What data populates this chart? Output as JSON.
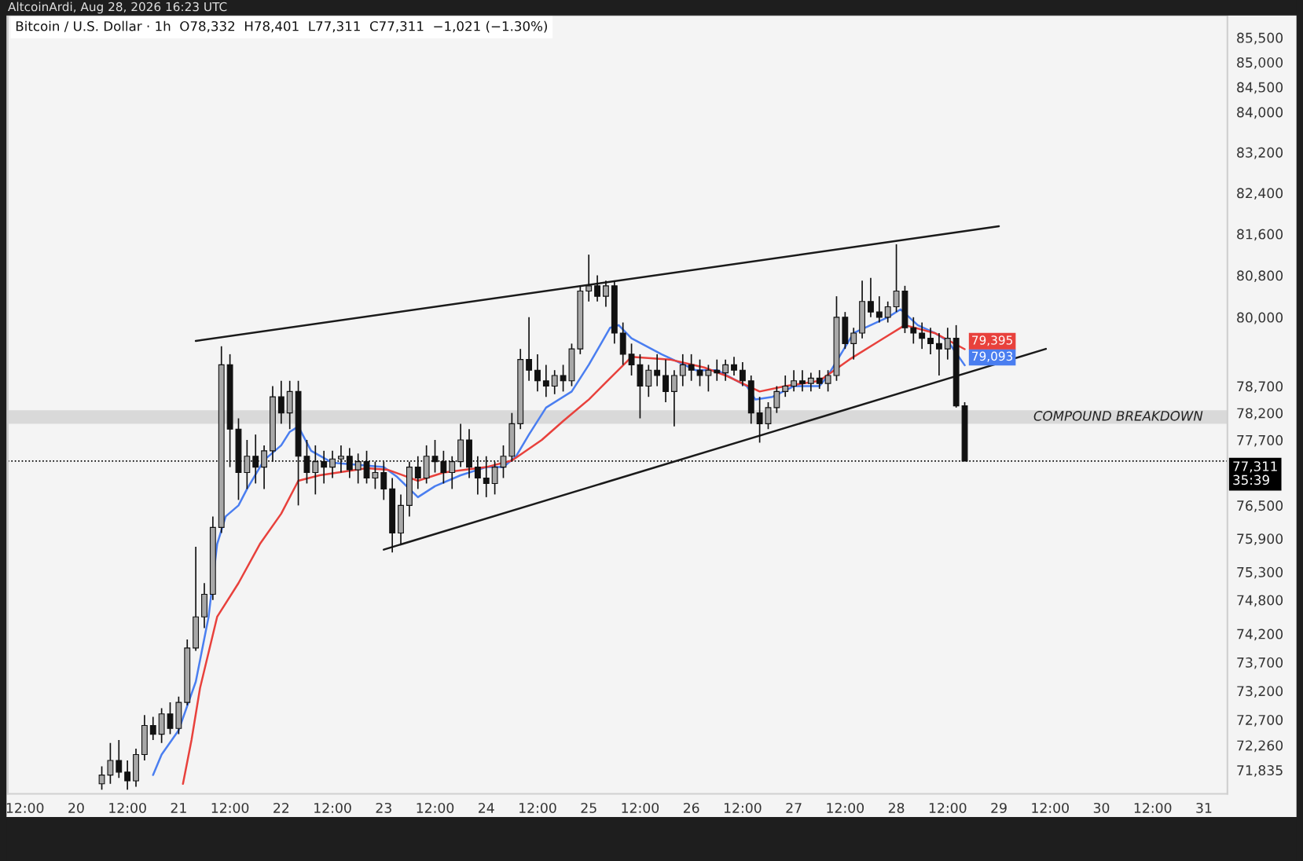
{
  "chart_data": {
    "type": "candlestick",
    "title": "Bitcoin / U.S. Dollar · 1h  O78,332  H78,401  L77,311  C77,311  −1,021 (−1.30%)",
    "subtitle": "AltcoinArdi, Aug 28, 2026 16:23 UTC",
    "log": true,
    "grid": false,
    "legend": false,
    "marker": "none",
    "ylim": [
      71430,
      85950
    ],
    "yticks": [
      {
        "value": 85500,
        "label": "85,500"
      },
      {
        "value": 85000,
        "label": "85,000"
      },
      {
        "value": 84500,
        "label": "84,500"
      },
      {
        "value": 84000,
        "label": "84,000"
      },
      {
        "value": 83200,
        "label": "83,200"
      },
      {
        "value": 82400,
        "label": "82,400"
      },
      {
        "value": 81600,
        "label": "81,600"
      },
      {
        "value": 80800,
        "label": "80,800"
      },
      {
        "value": 80000,
        "label": "80,000"
      },
      {
        "value": 78700,
        "label": "78,700"
      },
      {
        "value": 78200,
        "label": "78,200"
      },
      {
        "value": 77700,
        "label": "77,700"
      },
      {
        "value": 76500,
        "label": "76,500"
      },
      {
        "value": 75900,
        "label": "75,900"
      },
      {
        "value": 75300,
        "label": "75,300"
      },
      {
        "value": 74800,
        "label": "74,800"
      },
      {
        "value": 74200,
        "label": "74,200"
      },
      {
        "value": 73700,
        "label": "73,700"
      },
      {
        "value": 73200,
        "label": "73,200"
      },
      {
        "value": 72700,
        "label": "72,700"
      },
      {
        "value": 72260,
        "label": "72,260"
      },
      {
        "value": 71835,
        "label": "71,835"
      }
    ],
    "xlim": [
      "2026-08-19T08:00",
      "2026-08-31T05:30"
    ],
    "xticks": [
      {
        "value": "2026-08-19T12:00",
        "label": "12:00"
      },
      {
        "value": "2026-08-20T00:00",
        "label": "20"
      },
      {
        "value": "2026-08-20T12:00",
        "label": "12:00"
      },
      {
        "value": "2026-08-21T00:00",
        "label": "21"
      },
      {
        "value": "2026-08-21T12:00",
        "label": "12:00"
      },
      {
        "value": "2026-08-22T00:00",
        "label": "22"
      },
      {
        "value": "2026-08-22T12:00",
        "label": "12:00"
      },
      {
        "value": "2026-08-23T00:00",
        "label": "23"
      },
      {
        "value": "2026-08-23T12:00",
        "label": "12:00"
      },
      {
        "value": "2026-08-24T00:00",
        "label": "24"
      },
      {
        "value": "2026-08-24T12:00",
        "label": "12:00"
      },
      {
        "value": "2026-08-25T00:00",
        "label": "25"
      },
      {
        "value": "2026-08-25T12:00",
        "label": "12:00"
      },
      {
        "value": "2026-08-26T00:00",
        "label": "26"
      },
      {
        "value": "2026-08-26T12:00",
        "label": "12:00"
      },
      {
        "value": "2026-08-27T00:00",
        "label": "27"
      },
      {
        "value": "2026-08-27T12:00",
        "label": "12:00"
      },
      {
        "value": "2026-08-28T00:00",
        "label": "28"
      },
      {
        "value": "2026-08-28T12:00",
        "label": "12:00"
      },
      {
        "value": "2026-08-29T00:00",
        "label": "29"
      },
      {
        "value": "2026-08-29T12:00",
        "label": "12:00"
      },
      {
        "value": "2026-08-30T00:00",
        "label": "30"
      },
      {
        "value": "2026-08-30T12:00",
        "label": "12:00"
      },
      {
        "value": "2026-08-31T00:00",
        "label": "31"
      }
    ],
    "ref_lines": [
      {
        "axis": "y",
        "value": 77311,
        "label": "77,311\n35:39",
        "color": "#000000",
        "line_style": "dotted"
      }
    ],
    "bands": [
      {
        "axis": "y",
        "from": 78000,
        "to": 78250,
        "label": "COMPOUND BREAKDOWN",
        "color": "#d9d9d9"
      }
    ],
    "series": [
      {
        "type": "candlestick",
        "x": [
          "2026-08-20T06:00",
          "2026-08-20T08:00",
          "2026-08-20T10:00",
          "2026-08-20T12:00",
          "2026-08-20T14:00",
          "2026-08-20T16:00",
          "2026-08-20T18:00",
          "2026-08-20T20:00",
          "2026-08-20T22:00",
          "2026-08-21T00:00",
          "2026-08-21T02:00",
          "2026-08-21T04:00",
          "2026-08-21T06:00",
          "2026-08-21T08:00",
          "2026-08-21T10:00",
          "2026-08-21T12:00",
          "2026-08-21T14:00",
          "2026-08-21T16:00",
          "2026-08-21T18:00",
          "2026-08-21T20:00",
          "2026-08-21T22:00",
          "2026-08-22T00:00",
          "2026-08-22T02:00",
          "2026-08-22T04:00",
          "2026-08-22T06:00",
          "2026-08-22T08:00",
          "2026-08-22T10:00",
          "2026-08-22T12:00",
          "2026-08-22T14:00",
          "2026-08-22T16:00",
          "2026-08-22T18:00",
          "2026-08-22T20:00",
          "2026-08-22T22:00",
          "2026-08-23T00:00",
          "2026-08-23T02:00",
          "2026-08-23T04:00",
          "2026-08-23T06:00",
          "2026-08-23T08:00",
          "2026-08-23T10:00",
          "2026-08-23T12:00",
          "2026-08-23T14:00",
          "2026-08-23T16:00",
          "2026-08-23T18:00",
          "2026-08-23T20:00",
          "2026-08-23T22:00",
          "2026-08-24T00:00",
          "2026-08-24T02:00",
          "2026-08-24T04:00",
          "2026-08-24T06:00",
          "2026-08-24T08:00",
          "2026-08-24T10:00",
          "2026-08-24T12:00",
          "2026-08-24T14:00",
          "2026-08-24T16:00",
          "2026-08-24T18:00",
          "2026-08-24T20:00",
          "2026-08-24T22:00",
          "2026-08-25T00:00",
          "2026-08-25T02:00",
          "2026-08-25T04:00",
          "2026-08-25T06:00",
          "2026-08-25T08:00",
          "2026-08-25T10:00",
          "2026-08-25T12:00",
          "2026-08-25T14:00",
          "2026-08-25T16:00",
          "2026-08-25T18:00",
          "2026-08-25T20:00",
          "2026-08-25T22:00",
          "2026-08-26T00:00",
          "2026-08-26T02:00",
          "2026-08-26T04:00",
          "2026-08-26T06:00",
          "2026-08-26T08:00",
          "2026-08-26T10:00",
          "2026-08-26T12:00",
          "2026-08-26T14:00",
          "2026-08-26T16:00",
          "2026-08-26T18:00",
          "2026-08-26T20:00",
          "2026-08-26T22:00",
          "2026-08-27T00:00",
          "2026-08-27T02:00",
          "2026-08-27T04:00",
          "2026-08-27T06:00",
          "2026-08-27T08:00",
          "2026-08-27T10:00",
          "2026-08-27T12:00",
          "2026-08-27T14:00",
          "2026-08-27T16:00",
          "2026-08-27T18:00",
          "2026-08-27T20:00",
          "2026-08-27T22:00",
          "2026-08-28T00:00",
          "2026-08-28T02:00",
          "2026-08-28T04:00",
          "2026-08-28T06:00",
          "2026-08-28T08:00",
          "2026-08-28T10:00",
          "2026-08-28T12:00",
          "2026-08-28T14:00",
          "2026-08-28T16:00"
        ],
        "ohlc": [
          [
            71600,
            71900,
            71500,
            71750
          ],
          [
            71750,
            72300,
            71600,
            72000
          ],
          [
            72000,
            72350,
            71700,
            71800
          ],
          [
            71800,
            72000,
            71500,
            71650
          ],
          [
            71650,
            72200,
            71550,
            72100
          ],
          [
            72100,
            72780,
            72000,
            72600
          ],
          [
            72600,
            72750,
            72350,
            72450
          ],
          [
            72450,
            72900,
            72300,
            72800
          ],
          [
            72800,
            73000,
            72450,
            72550
          ],
          [
            72550,
            73100,
            72450,
            73000
          ],
          [
            73000,
            74100,
            72950,
            73950
          ],
          [
            73950,
            75750,
            73900,
            74500
          ],
          [
            74500,
            75100,
            74300,
            74900
          ],
          [
            74900,
            76300,
            74800,
            76100
          ],
          [
            76100,
            79450,
            76000,
            79100
          ],
          [
            79100,
            79300,
            77200,
            77900
          ],
          [
            77900,
            78100,
            76600,
            77100
          ],
          [
            77100,
            77700,
            76800,
            77400
          ],
          [
            77400,
            77800,
            76900,
            77200
          ],
          [
            77200,
            77600,
            76800,
            77500
          ],
          [
            77500,
            78700,
            77300,
            78500
          ],
          [
            78500,
            78800,
            78000,
            78200
          ],
          [
            78200,
            78800,
            77900,
            78600
          ],
          [
            78600,
            78800,
            76500,
            77400
          ],
          [
            77400,
            77700,
            76900,
            77100
          ],
          [
            77100,
            77600,
            76700,
            77300
          ],
          [
            77300,
            77500,
            76900,
            77200
          ],
          [
            77200,
            77500,
            77000,
            77350
          ],
          [
            77350,
            77600,
            77100,
            77400
          ],
          [
            77400,
            77550,
            77000,
            77150
          ],
          [
            77150,
            77450,
            76900,
            77300
          ],
          [
            77300,
            77500,
            76900,
            77000
          ],
          [
            77000,
            77300,
            76800,
            77100
          ],
          [
            77100,
            77300,
            76600,
            76800
          ],
          [
            76800,
            77000,
            75650,
            76000
          ],
          [
            76000,
            76700,
            75800,
            76500
          ],
          [
            76500,
            77300,
            76300,
            77200
          ],
          [
            77200,
            77400,
            76800,
            77000
          ],
          [
            77000,
            77600,
            76900,
            77400
          ],
          [
            77400,
            77700,
            77100,
            77300
          ],
          [
            77300,
            77500,
            76900,
            77100
          ],
          [
            77100,
            77400,
            76800,
            77300
          ],
          [
            77300,
            78000,
            77200,
            77700
          ],
          [
            77700,
            77900,
            77000,
            77200
          ],
          [
            77200,
            77400,
            76700,
            77000
          ],
          [
            77000,
            77400,
            76650,
            76900
          ],
          [
            76900,
            77300,
            76700,
            77200
          ],
          [
            77200,
            77600,
            77000,
            77400
          ],
          [
            77400,
            78200,
            77300,
            78000
          ],
          [
            78000,
            79400,
            77900,
            79200
          ],
          [
            79200,
            80000,
            78800,
            79000
          ],
          [
            79000,
            79300,
            78600,
            78800
          ],
          [
            78800,
            79100,
            78500,
            78700
          ],
          [
            78700,
            79000,
            78550,
            78900
          ],
          [
            78900,
            79100,
            78600,
            78800
          ],
          [
            78800,
            79500,
            78700,
            79400
          ],
          [
            79400,
            80600,
            79300,
            80500
          ],
          [
            80500,
            81200,
            80300,
            80600
          ],
          [
            80600,
            80800,
            80300,
            80400
          ],
          [
            80400,
            80700,
            80200,
            80600
          ],
          [
            80600,
            80700,
            79500,
            79700
          ],
          [
            79700,
            79900,
            79100,
            79300
          ],
          [
            79300,
            79500,
            78900,
            79100
          ],
          [
            79100,
            79300,
            78100,
            78700
          ],
          [
            78700,
            79100,
            78500,
            79000
          ],
          [
            79000,
            79300,
            78700,
            78900
          ],
          [
            78900,
            79200,
            78400,
            78600
          ],
          [
            78600,
            79000,
            77950,
            78900
          ],
          [
            78900,
            79300,
            78700,
            79100
          ],
          [
            79100,
            79300,
            78800,
            79000
          ],
          [
            79000,
            79200,
            78700,
            78900
          ],
          [
            78900,
            79100,
            78600,
            79000
          ],
          [
            79000,
            79200,
            78800,
            78950
          ],
          [
            78950,
            79200,
            78800,
            79100
          ],
          [
            79100,
            79250,
            78900,
            79000
          ],
          [
            79000,
            79150,
            78700,
            78800
          ],
          [
            78800,
            78900,
            78000,
            78200
          ],
          [
            78200,
            78500,
            77650,
            78000
          ],
          [
            78000,
            78400,
            77900,
            78300
          ],
          [
            78300,
            78700,
            78200,
            78600
          ],
          [
            78600,
            78900,
            78500,
            78700
          ],
          [
            78700,
            79000,
            78600,
            78800
          ],
          [
            78800,
            79000,
            78600,
            78750
          ],
          [
            78750,
            78950,
            78600,
            78850
          ],
          [
            78850,
            79000,
            78650,
            78750
          ],
          [
            78750,
            79000,
            78600,
            78900
          ],
          [
            78900,
            80400,
            78800,
            80000
          ],
          [
            80000,
            80100,
            79400,
            79500
          ],
          [
            79500,
            79800,
            79200,
            79700
          ],
          [
            79700,
            80700,
            79600,
            80300
          ],
          [
            80300,
            80750,
            80000,
            80100
          ],
          [
            80100,
            80400,
            79900,
            80000
          ],
          [
            80000,
            80300,
            79900,
            80200
          ],
          [
            80200,
            81400,
            80100,
            80500
          ],
          [
            80500,
            80600,
            79700,
            79800
          ],
          [
            79800,
            80000,
            79500,
            79700
          ],
          [
            79700,
            79900,
            79400,
            79600
          ],
          [
            79600,
            79800,
            79300,
            79500
          ],
          [
            79500,
            79700,
            78900,
            79400
          ],
          [
            79400,
            79800,
            79200,
            79600
          ],
          [
            79600,
            79850,
            78300,
            78332
          ],
          [
            78332,
            78401,
            77311,
            77311
          ]
        ],
        "colors": [
          "#a8a8a8",
          "#a8a8a8",
          "#111111",
          "#111111",
          "#a8a8a8",
          "#a8a8a8",
          "#111111",
          "#a8a8a8",
          "#111111",
          "#a8a8a8",
          "#a8a8a8",
          "#a8a8a8",
          "#a8a8a8",
          "#a8a8a8",
          "#a8a8a8",
          "#111111",
          "#111111",
          "#a8a8a8",
          "#111111",
          "#a8a8a8",
          "#a8a8a8",
          "#111111",
          "#a8a8a8",
          "#111111",
          "#111111",
          "#a8a8a8",
          "#111111",
          "#a8a8a8",
          "#a8a8a8",
          "#111111",
          "#a8a8a8",
          "#111111",
          "#a8a8a8",
          "#111111",
          "#111111",
          "#a8a8a8",
          "#a8a8a8",
          "#111111",
          "#a8a8a8",
          "#111111",
          "#111111",
          "#a8a8a8",
          "#a8a8a8",
          "#111111",
          "#111111",
          "#111111",
          "#a8a8a8",
          "#a8a8a8",
          "#a8a8a8",
          "#a8a8a8",
          "#111111",
          "#111111",
          "#111111",
          "#a8a8a8",
          "#111111",
          "#a8a8a8",
          "#a8a8a8",
          "#a8a8a8",
          "#111111",
          "#a8a8a8",
          "#111111",
          "#111111",
          "#111111",
          "#111111",
          "#a8a8a8",
          "#111111",
          "#111111",
          "#a8a8a8",
          "#a8a8a8",
          "#111111",
          "#111111",
          "#a8a8a8",
          "#111111",
          "#a8a8a8",
          "#111111",
          "#111111",
          "#111111",
          "#111111",
          "#a8a8a8",
          "#a8a8a8",
          "#a8a8a8",
          "#a8a8a8",
          "#111111",
          "#a8a8a8",
          "#111111",
          "#a8a8a8",
          "#a8a8a8",
          "#111111",
          "#a8a8a8",
          "#a8a8a8",
          "#111111",
          "#111111",
          "#a8a8a8",
          "#a8a8a8",
          "#111111",
          "#111111",
          "#111111",
          "#111111",
          "#111111",
          "#a8a8a8",
          "#111111",
          "#111111"
        ]
      },
      {
        "type": "line",
        "color": "#4a7ef0",
        "line_style": "solid",
        "x": [
          "2026-08-20T18:00",
          "2026-08-20T20:00",
          "2026-08-21T00:00",
          "2026-08-21T04:00",
          "2026-08-21T07:00",
          "2026-08-21T09:00",
          "2026-08-21T11:00",
          "2026-08-21T14:00",
          "2026-08-21T16:00",
          "2026-08-21T20:00",
          "2026-08-22T00:00",
          "2026-08-22T02:00",
          "2026-08-22T04:00",
          "2026-08-22T07:00",
          "2026-08-22T12:00",
          "2026-08-23T00:00",
          "2026-08-23T03:00",
          "2026-08-23T08:00",
          "2026-08-23T12:00",
          "2026-08-23T18:00",
          "2026-08-24T00:00",
          "2026-08-24T04:00",
          "2026-08-24T07:00",
          "2026-08-24T10:00",
          "2026-08-24T14:00",
          "2026-08-24T20:00",
          "2026-08-25T00:00",
          "2026-08-25T05:00",
          "2026-08-25T07:00",
          "2026-08-25T10:00",
          "2026-08-25T17:00",
          "2026-08-26T01:00",
          "2026-08-26T06:00",
          "2026-08-26T13:00",
          "2026-08-26T15:00",
          "2026-08-26T19:00",
          "2026-08-27T00:00",
          "2026-08-27T06:00",
          "2026-08-27T08:00",
          "2026-08-27T11:00",
          "2026-08-27T14:00",
          "2026-08-27T18:00",
          "2026-08-27T22:00",
          "2026-08-28T01:00",
          "2026-08-28T05:00",
          "2026-08-28T09:00",
          "2026-08-28T12:00",
          "2026-08-28T16:00"
        ],
        "values": [
          71750,
          72100,
          72520,
          73360,
          74500,
          75800,
          76300,
          76500,
          76800,
          77330,
          77600,
          77850,
          77950,
          77500,
          77280,
          77200,
          77030,
          76650,
          76850,
          77050,
          77200,
          77200,
          77400,
          77800,
          78300,
          78600,
          79100,
          79800,
          79850,
          79600,
          79300,
          79000,
          79000,
          78700,
          78450,
          78500,
          78700,
          78700,
          78900,
          79300,
          79700,
          79850,
          80000,
          80150,
          79850,
          79700,
          79550,
          79093
        ],
        "value_labels": [
          null,
          null,
          null,
          null,
          null,
          null,
          null,
          null,
          null,
          null,
          null,
          null,
          null,
          null,
          null,
          null,
          null,
          null,
          null,
          null,
          null,
          null,
          null,
          null,
          null,
          null,
          null,
          null,
          null,
          null,
          null,
          null,
          null,
          null,
          null,
          null,
          null,
          null,
          null,
          null,
          null,
          null,
          null,
          null,
          null,
          null,
          null,
          "79,093"
        ]
      },
      {
        "type": "line",
        "color": "#e8413c",
        "line_style": "solid",
        "x": [
          "2026-08-21T01:00",
          "2026-08-21T03:00",
          "2026-08-21T05:00",
          "2026-08-21T09:00",
          "2026-08-21T14:00",
          "2026-08-21T19:00",
          "2026-08-22T00:00",
          "2026-08-22T04:00",
          "2026-08-22T09:00",
          "2026-08-22T20:00",
          "2026-08-23T01:00",
          "2026-08-23T08:00",
          "2026-08-23T14:00",
          "2026-08-24T00:00",
          "2026-08-24T06:00",
          "2026-08-24T13:00",
          "2026-08-24T18:00",
          "2026-08-25T00:00",
          "2026-08-25T05:00",
          "2026-08-25T10:00",
          "2026-08-25T19:00",
          "2026-08-26T03:00",
          "2026-08-26T08:00",
          "2026-08-26T16:00",
          "2026-08-26T22:00",
          "2026-08-27T06:00",
          "2026-08-27T13:00",
          "2026-08-27T20:00",
          "2026-08-28T02:00",
          "2026-08-28T09:00",
          "2026-08-28T16:00"
        ],
        "values": [
          71600,
          72350,
          73250,
          74500,
          75100,
          75800,
          76350,
          76950,
          77050,
          77180,
          77150,
          76950,
          77100,
          77200,
          77320,
          77700,
          78050,
          78450,
          78850,
          79250,
          79200,
          79050,
          78900,
          78600,
          78700,
          78800,
          79200,
          79550,
          79850,
          79700,
          79395
        ],
        "value_labels": [
          null,
          null,
          null,
          null,
          null,
          null,
          null,
          null,
          null,
          null,
          null,
          null,
          null,
          null,
          null,
          null,
          null,
          null,
          null,
          null,
          null,
          null,
          null,
          null,
          null,
          null,
          null,
          null,
          null,
          null,
          "79,395"
        ]
      },
      {
        "type": "line",
        "color": "#1a1a1a",
        "line_style": "solid",
        "x": [
          "2026-08-21T04:00",
          "2026-08-29T00:00"
        ],
        "values": [
          79550,
          81750
        ]
      },
      {
        "type": "line",
        "color": "#1a1a1a",
        "line_style": "solid",
        "x": [
          "2026-08-23T00:00",
          "2026-08-29T11:00"
        ],
        "values": [
          75700,
          79400
        ]
      }
    ]
  }
}
